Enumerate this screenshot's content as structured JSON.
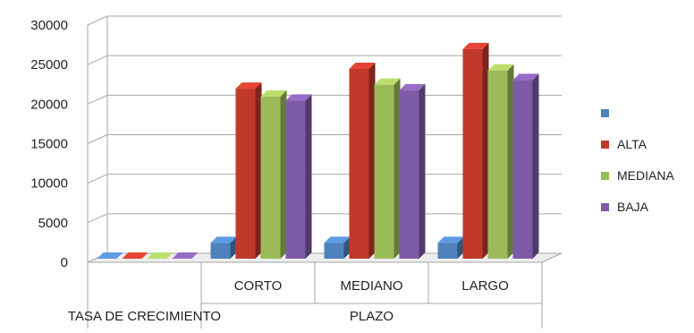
{
  "chart_data": {
    "type": "bar",
    "title": "",
    "xlabel": "",
    "ylabel": "",
    "ylim": [
      0,
      30000
    ],
    "yticks": [
      "0",
      "5000",
      "10000",
      "15000",
      "20000",
      "25000",
      "30000"
    ],
    "grid": true,
    "legend_position": "right",
    "categories": [
      "",
      "CORTO",
      "MEDIANO",
      "LARGO"
    ],
    "category_groups": [
      {
        "label": "TASA DE CRECIMIENTO",
        "categories": [
          ""
        ]
      },
      {
        "label": "PLAZO",
        "categories": [
          "CORTO",
          "MEDIANO",
          "LARGO"
        ]
      }
    ],
    "series": [
      {
        "name": "",
        "color": "#4f81bd",
        "values": [
          0,
          2000,
          2000,
          2000
        ]
      },
      {
        "name": "ALTA",
        "color": "#c0392b",
        "values": [
          0,
          21500,
          24000,
          26500
        ]
      },
      {
        "name": "MEDIANA",
        "color": "#9bbb59",
        "values": [
          0,
          20500,
          22000,
          23800
        ]
      },
      {
        "name": "BAJA",
        "color": "#7d5ba6",
        "values": [
          0,
          20000,
          21300,
          22600
        ]
      }
    ]
  }
}
